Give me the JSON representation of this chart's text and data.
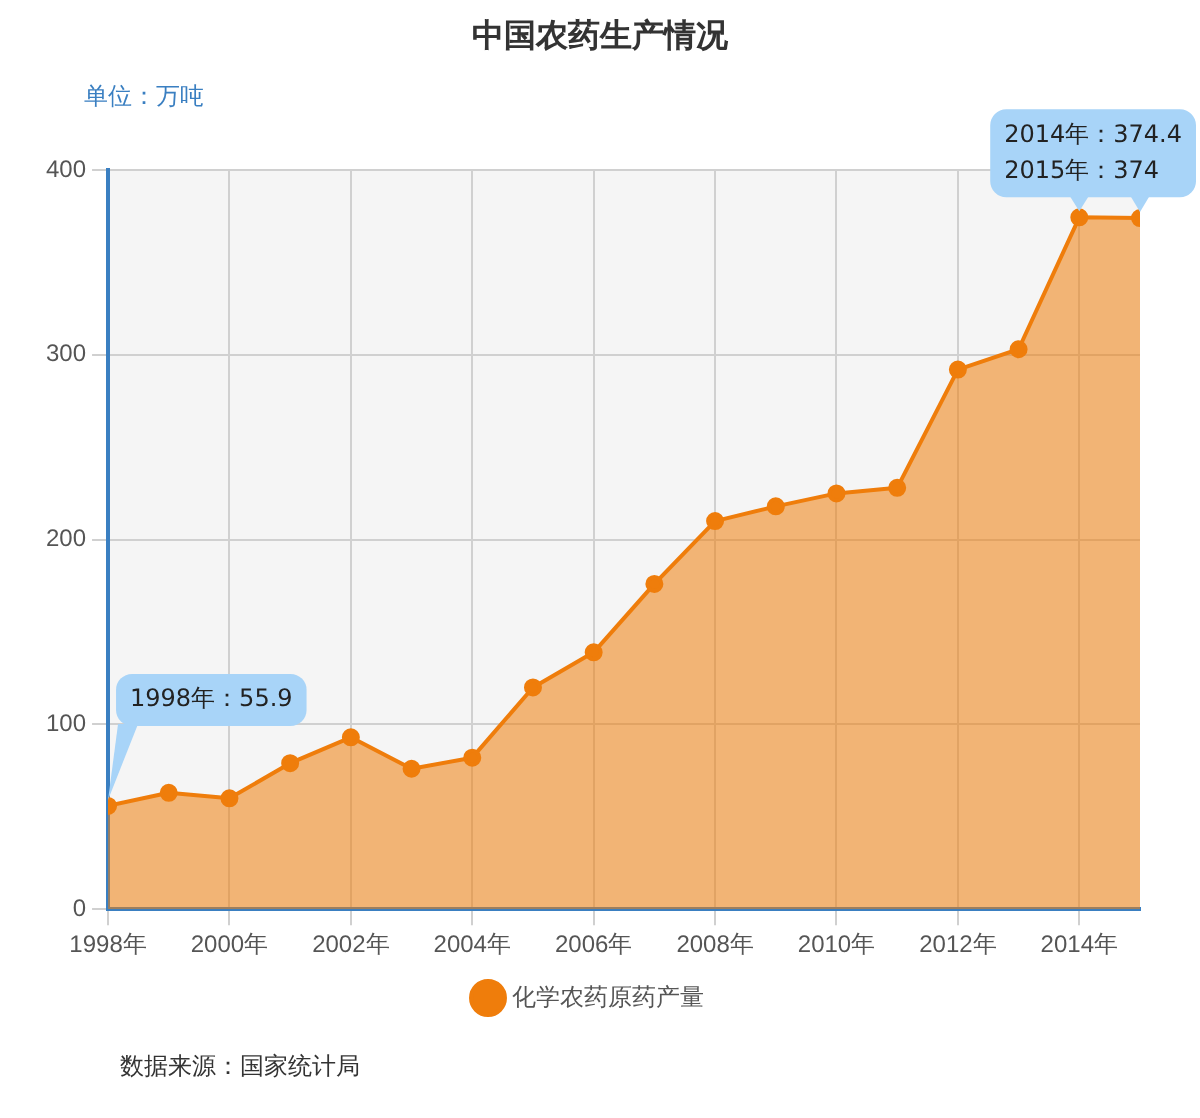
{
  "chart_data": {
    "type": "area",
    "title": "中国农药生产情况",
    "ylabel": "单位：万吨",
    "x": [
      1998,
      1999,
      2000,
      2001,
      2002,
      2003,
      2004,
      2005,
      2006,
      2007,
      2008,
      2009,
      2010,
      2011,
      2012,
      2013,
      2014,
      2015
    ],
    "series": [
      {
        "name": "化学农药原药产量",
        "color": "#ef7d0b",
        "values": [
          55.9,
          63,
          60,
          79,
          93,
          76,
          82,
          120,
          139,
          176,
          210,
          218,
          225,
          228,
          292,
          303,
          374.4,
          374
        ]
      }
    ],
    "xlim": [
      1998,
      2015
    ],
    "xticks": [
      {
        "value": 1998,
        "label": "1998年"
      },
      {
        "value": 2000,
        "label": "2000年"
      },
      {
        "value": 2002,
        "label": "2002年"
      },
      {
        "value": 2004,
        "label": "2004年"
      },
      {
        "value": 2006,
        "label": "2006年"
      },
      {
        "value": 2008,
        "label": "2008年"
      },
      {
        "value": 2010,
        "label": "2010年"
      },
      {
        "value": 2012,
        "label": "2012年"
      },
      {
        "value": 2014,
        "label": "2014年"
      }
    ],
    "ylim": [
      0,
      400
    ],
    "yticks": [
      0,
      100,
      200,
      300,
      400
    ],
    "grid": true,
    "legend": "bottom",
    "marker": "circle",
    "annotations": [
      {
        "text": "1998年：55.9",
        "x": 1998,
        "y": 55.9
      },
      {
        "text": "2014年：374.4",
        "x": 2014,
        "y": 374.4
      },
      {
        "text": "2015年：374",
        "x": 2015,
        "y": 374
      },
      "数据来源：国家统计局"
    ]
  }
}
